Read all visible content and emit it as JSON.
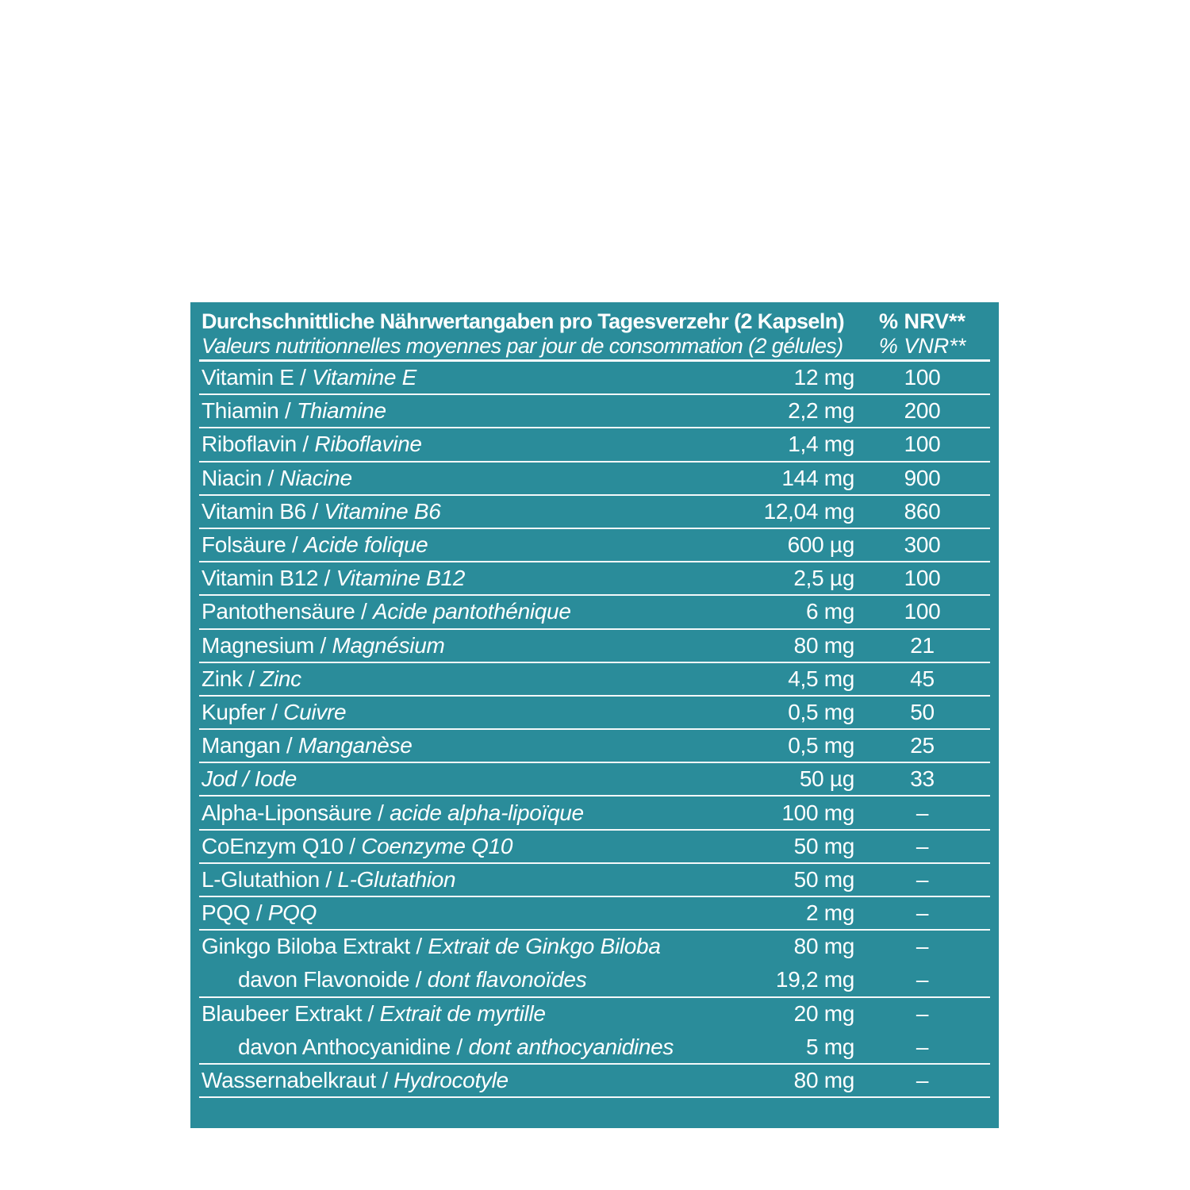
{
  "canvas": {
    "background_color": "#ffffff"
  },
  "table": {
    "background_color": "#2a8c9a",
    "text_color": "#ffffff",
    "divider_color": "#f2fbfc",
    "separator": " / ",
    "header": {
      "title_de": "Durchschnittliche Nährwertangaben pro Tagesverzehr (2 Kapseln)",
      "title_fr": "Valeurs nutritionnelles moyennes par jour de consommation (2 gélules)",
      "nrv_label_de": "% NRV**",
      "nrv_label_fr": "% VNR**"
    },
    "rows": [
      {
        "name_de": "Vitamin E",
        "name_fr": "Vitamine E",
        "amount": "12 mg",
        "nrv": "100"
      },
      {
        "name_de": "Thiamin",
        "name_fr": "Thiamine",
        "amount": "2,2 mg",
        "nrv": "200"
      },
      {
        "name_de": "Riboflavin",
        "name_fr": "Riboflavine",
        "amount": "1,4 mg",
        "nrv": "100"
      },
      {
        "name_de": "Niacin",
        "name_fr": "Niacine",
        "amount": "144 mg",
        "nrv": "900"
      },
      {
        "name_de": "Vitamin B6",
        "name_fr": "Vitamine B6",
        "amount": "12,04 mg",
        "nrv": "860"
      },
      {
        "name_de": "Folsäure",
        "name_fr": "Acide folique",
        "amount": "600 µg",
        "nrv": "300"
      },
      {
        "name_de": "Vitamin B12",
        "name_fr": "Vitamine B12",
        "amount": "2,5 µg",
        "nrv": "100"
      },
      {
        "name_de": "Pantothensäure",
        "name_fr": "Acide pantothénique",
        "amount": "6 mg",
        "nrv": "100"
      },
      {
        "name_de": "Magnesium",
        "name_fr": "Magnésium",
        "amount": "80 mg",
        "nrv": "21"
      },
      {
        "name_de": "Zink",
        "name_fr": "Zinc",
        "amount": "4,5 mg",
        "nrv": "45"
      },
      {
        "name_de": "Kupfer",
        "name_fr": "Cuivre",
        "amount": "0,5 mg",
        "nrv": "50"
      },
      {
        "name_de": "Mangan",
        "name_fr": "Manganèse",
        "amount": "0,5 mg",
        "nrv": "25"
      },
      {
        "name_de": "Jod",
        "name_fr": "Iode",
        "amount": "50 µg",
        "nrv": "33",
        "italic_de": true
      },
      {
        "name_de": "Alpha-Liponsäure",
        "name_fr": "acide alpha-lipoïque",
        "amount": "100 mg",
        "nrv": "–"
      },
      {
        "name_de": "CoEnzym Q10",
        "name_fr": "Coenzyme Q10",
        "amount": "50 mg",
        "nrv": "–"
      },
      {
        "name_de": "L-Glutathion",
        "name_fr": "L-Glutathion",
        "amount": "50 mg",
        "nrv": "–"
      },
      {
        "name_de": "PQQ",
        "name_fr": "PQQ",
        "amount": "2 mg",
        "nrv": "–"
      },
      {
        "name_de": "Ginkgo Biloba Extrakt",
        "name_fr": "Extrait de Ginkgo Biloba",
        "amount": "80 mg",
        "nrv": "–",
        "no_divider": true
      },
      {
        "name_de": "davon Flavonoide",
        "name_fr": "dont flavonoïdes",
        "amount": "19,2 mg",
        "nrv": "–",
        "indent": true
      },
      {
        "name_de": "Blaubeer Extrakt",
        "name_fr": "Extrait de myrtille",
        "amount": "20 mg",
        "nrv": "–",
        "no_divider": true
      },
      {
        "name_de": "davon Anthocyanidine",
        "name_fr": "dont anthocyanidines",
        "amount": "5 mg",
        "nrv": "–",
        "indent": true
      },
      {
        "name_de": "Wassernabelkraut",
        "name_fr": "Hydrocotyle",
        "amount": "80 mg",
        "nrv": "–"
      }
    ]
  }
}
